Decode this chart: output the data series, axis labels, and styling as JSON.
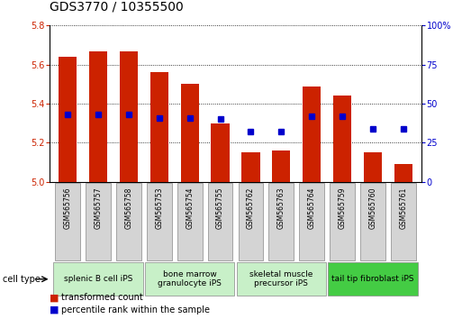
{
  "title": "GDS3770 / 10355500",
  "samples": [
    "GSM565756",
    "GSM565757",
    "GSM565758",
    "GSM565753",
    "GSM565754",
    "GSM565755",
    "GSM565762",
    "GSM565763",
    "GSM565764",
    "GSM565759",
    "GSM565760",
    "GSM565761"
  ],
  "bar_values": [
    5.64,
    5.67,
    5.67,
    5.56,
    5.5,
    5.3,
    5.15,
    5.16,
    5.49,
    5.44,
    5.15,
    5.09
  ],
  "percentile_values": [
    43,
    43,
    43,
    41,
    41,
    40,
    32,
    32,
    42,
    42,
    34,
    34
  ],
  "ylim": [
    5.0,
    5.8
  ],
  "yticks": [
    5.0,
    5.2,
    5.4,
    5.6,
    5.8
  ],
  "y2lim": [
    0,
    100
  ],
  "y2ticks": [
    0,
    25,
    50,
    75,
    100
  ],
  "bar_color": "#cc2200",
  "dot_color": "#0000cc",
  "bar_width": 0.6,
  "groups": [
    {
      "label": "splenic B cell iPS",
      "start": 0,
      "end": 3,
      "color": "#c8f0c8"
    },
    {
      "label": "bone marrow\ngranulocyte iPS",
      "start": 3,
      "end": 6,
      "color": "#c8f0c8"
    },
    {
      "label": "skeletal muscle\nprecursor iPS",
      "start": 6,
      "end": 9,
      "color": "#c8f0c8"
    },
    {
      "label": "tail tip fibroblast iPS",
      "start": 9,
      "end": 12,
      "color": "#44cc44"
    }
  ],
  "cell_type_label": "cell type",
  "legend_bar_label": "transformed count",
  "legend_dot_label": "percentile rank within the sample",
  "title_fontsize": 10,
  "tick_fontsize": 7,
  "label_fontsize": 7,
  "group_fontsize": 6.5,
  "sample_fontsize": 5.5
}
